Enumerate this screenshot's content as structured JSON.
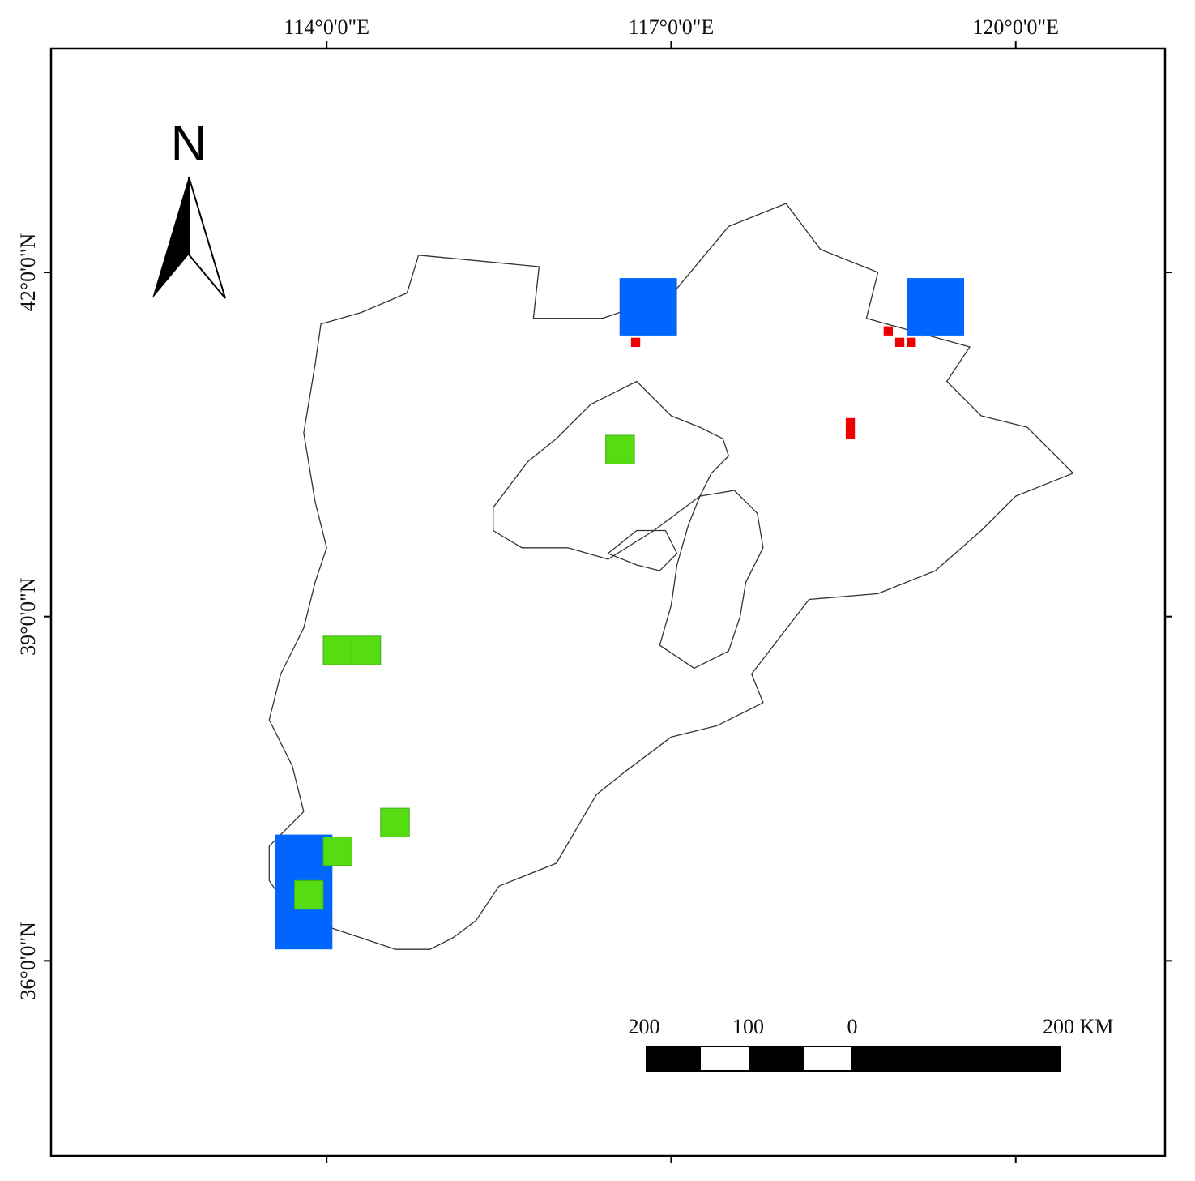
{
  "map": {
    "extent": {
      "lon": [
        111.6,
        121.3
      ],
      "lat": [
        34.3,
        43.95
      ]
    },
    "north_arrow": {
      "label": "N"
    },
    "lon_ticks": [
      {
        "value": 114,
        "label": "114°0'0\"E"
      },
      {
        "value": 117,
        "label": "117°0'0\"E"
      },
      {
        "value": 120,
        "label": "120°0'0\"E"
      }
    ],
    "lat_ticks": [
      {
        "value": 42,
        "label": "42°0'0\"N"
      },
      {
        "value": 39,
        "label": "39°0'0\"N"
      },
      {
        "value": 36,
        "label": "36°0'0\"N"
      }
    ],
    "scale_bar": {
      "labels": [
        {
          "text": "200",
          "km": -200
        },
        {
          "text": "100",
          "km": -100
        },
        {
          "text": "0",
          "km": 0
        },
        {
          "text": "200 KM",
          "km": 200
        }
      ]
    },
    "colors": {
      "blue": "#0066ff",
      "green": "#55dd11",
      "red": "#ee0000",
      "boundary": "#333333"
    },
    "cells": [
      {
        "name": "blue-cell-north",
        "color": "blue",
        "lon": 116.55,
        "lat": 41.45,
        "w": 0.5,
        "h": 0.5
      },
      {
        "name": "blue-cell-northeast",
        "color": "blue",
        "lon": 119.05,
        "lat": 41.45,
        "w": 0.5,
        "h": 0.5
      },
      {
        "name": "blue-cell-southwest",
        "color": "blue",
        "lon": 113.55,
        "lat": 36.1,
        "w": 0.5,
        "h": 1.0
      },
      {
        "name": "green-cell-1",
        "color": "green",
        "lon": 116.43,
        "lat": 40.33,
        "w": 0.25,
        "h": 0.25
      },
      {
        "name": "green-cell-2",
        "color": "green",
        "lon": 113.97,
        "lat": 38.58,
        "w": 0.25,
        "h": 0.25
      },
      {
        "name": "green-cell-3",
        "color": "green",
        "lon": 114.22,
        "lat": 38.58,
        "w": 0.25,
        "h": 0.25
      },
      {
        "name": "green-cell-4",
        "color": "green",
        "lon": 114.47,
        "lat": 37.08,
        "w": 0.25,
        "h": 0.25
      },
      {
        "name": "green-cell-5",
        "color": "green",
        "lon": 113.97,
        "lat": 36.83,
        "w": 0.25,
        "h": 0.25
      },
      {
        "name": "green-cell-6",
        "color": "green",
        "lon": 113.72,
        "lat": 36.45,
        "w": 0.25,
        "h": 0.25
      },
      {
        "name": "red-cell-1",
        "color": "red",
        "lon": 116.65,
        "lat": 41.35,
        "w": 0.08,
        "h": 0.08
      },
      {
        "name": "red-cell-2",
        "color": "red",
        "lon": 118.52,
        "lat": 40.55,
        "w": 0.08,
        "h": 0.18
      },
      {
        "name": "red-cell-3",
        "color": "red",
        "lon": 118.85,
        "lat": 41.45,
        "w": 0.08,
        "h": 0.08
      },
      {
        "name": "red-cell-4",
        "color": "red",
        "lon": 118.95,
        "lat": 41.35,
        "w": 0.08,
        "h": 0.08
      },
      {
        "name": "red-cell-5",
        "color": "red",
        "lon": 119.05,
        "lat": 41.35,
        "w": 0.08,
        "h": 0.08
      }
    ],
    "regions": [
      {
        "name": "hebei-outline",
        "coords": [
          [
            113.95,
            41.55
          ],
          [
            114.3,
            41.65
          ],
          [
            114.7,
            41.82
          ],
          [
            114.8,
            42.15
          ],
          [
            115.85,
            42.05
          ],
          [
            115.8,
            41.6
          ],
          [
            116.4,
            41.6
          ],
          [
            117.0,
            41.8
          ],
          [
            117.5,
            42.4
          ],
          [
            118.0,
            42.6
          ],
          [
            118.3,
            42.2
          ],
          [
            118.8,
            42.0
          ],
          [
            118.7,
            41.6
          ],
          [
            119.6,
            41.35
          ],
          [
            119.4,
            41.05
          ],
          [
            119.7,
            40.75
          ],
          [
            120.1,
            40.65
          ],
          [
            120.5,
            40.25
          ],
          [
            120.0,
            40.05
          ],
          [
            119.7,
            39.75
          ],
          [
            119.3,
            39.4
          ],
          [
            118.8,
            39.2
          ],
          [
            118.2,
            39.15
          ],
          [
            117.7,
            38.5
          ],
          [
            117.8,
            38.25
          ],
          [
            117.4,
            38.05
          ],
          [
            117.0,
            37.95
          ],
          [
            116.6,
            37.65
          ],
          [
            116.35,
            37.45
          ],
          [
            116.0,
            36.85
          ],
          [
            115.5,
            36.65
          ],
          [
            115.3,
            36.35
          ],
          [
            115.1,
            36.2
          ],
          [
            114.9,
            36.1
          ],
          [
            114.6,
            36.1
          ],
          [
            114.3,
            36.2
          ],
          [
            114.0,
            36.3
          ],
          [
            113.7,
            36.4
          ],
          [
            113.5,
            36.7
          ],
          [
            113.5,
            37.0
          ],
          [
            113.8,
            37.3
          ],
          [
            113.7,
            37.7
          ],
          [
            113.5,
            38.1
          ],
          [
            113.6,
            38.5
          ],
          [
            113.8,
            38.9
          ],
          [
            113.9,
            39.3
          ],
          [
            114.0,
            39.6
          ],
          [
            113.9,
            40.0
          ],
          [
            113.8,
            40.6
          ],
          [
            113.9,
            41.2
          ]
        ]
      },
      {
        "name": "beijing-outline",
        "coords": [
          [
            115.45,
            39.95
          ],
          [
            115.75,
            40.35
          ],
          [
            116.0,
            40.55
          ],
          [
            116.3,
            40.85
          ],
          [
            116.7,
            41.05
          ],
          [
            117.0,
            40.75
          ],
          [
            117.25,
            40.65
          ],
          [
            117.45,
            40.55
          ],
          [
            117.5,
            40.4
          ],
          [
            117.35,
            40.25
          ],
          [
            117.25,
            40.05
          ],
          [
            116.85,
            39.75
          ],
          [
            116.45,
            39.5
          ],
          [
            116.1,
            39.6
          ],
          [
            115.7,
            39.6
          ],
          [
            115.45,
            39.75
          ]
        ]
      },
      {
        "name": "tianjin-outline",
        "coords": [
          [
            117.25,
            40.05
          ],
          [
            117.55,
            40.1
          ],
          [
            117.75,
            39.9
          ],
          [
            117.8,
            39.6
          ],
          [
            117.65,
            39.3
          ],
          [
            117.6,
            39.0
          ],
          [
            117.5,
            38.7
          ],
          [
            117.2,
            38.55
          ],
          [
            116.9,
            38.75
          ],
          [
            117.0,
            39.1
          ],
          [
            117.05,
            39.45
          ],
          [
            117.15,
            39.8
          ]
        ]
      },
      {
        "name": "langfang-outline",
        "coords": [
          [
            116.45,
            39.55
          ],
          [
            116.7,
            39.75
          ],
          [
            116.95,
            39.75
          ],
          [
            117.05,
            39.55
          ],
          [
            116.9,
            39.4
          ],
          [
            116.7,
            39.45
          ]
        ]
      }
    ]
  }
}
